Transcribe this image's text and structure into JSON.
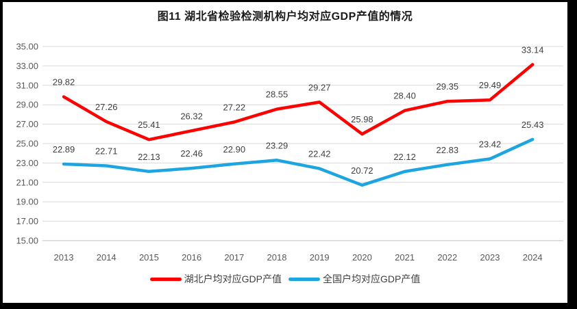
{
  "chart_data": {
    "type": "line",
    "title": "图11  湖北省检验检测机构户均对应GDP产值的情况",
    "categories": [
      "2013",
      "2014",
      "2015",
      "2016",
      "2017",
      "2018",
      "2019",
      "2020",
      "2021",
      "2022",
      "2023",
      "2024"
    ],
    "series": [
      {
        "name": "湖北户均对应GDP产值",
        "color": "#fe0000",
        "values": [
          29.82,
          27.26,
          25.41,
          26.32,
          27.22,
          28.55,
          29.27,
          25.98,
          28.4,
          29.35,
          29.49,
          33.14
        ]
      },
      {
        "name": "全国户均对应GDP产值",
        "color": "#1ca5e0",
        "values": [
          22.89,
          22.71,
          22.13,
          22.46,
          22.9,
          23.29,
          22.42,
          20.72,
          22.12,
          22.83,
          23.42,
          25.43
        ]
      }
    ],
    "ylim": [
      15,
      35
    ],
    "ytick_step": 2,
    "ytick_decimals": 2,
    "value_label_decimals": 2,
    "grid": true,
    "legend_position": "bottom",
    "value_labels": "above"
  },
  "style": {
    "grid_color": "#d9d9d9",
    "axis_color": "#bfbfbf",
    "tick_label_color": "#595959",
    "data_label_color": "#404040",
    "title_color": "#1a1a1a",
    "frame_border_color": "#000000",
    "background_color": "#ffffff"
  }
}
